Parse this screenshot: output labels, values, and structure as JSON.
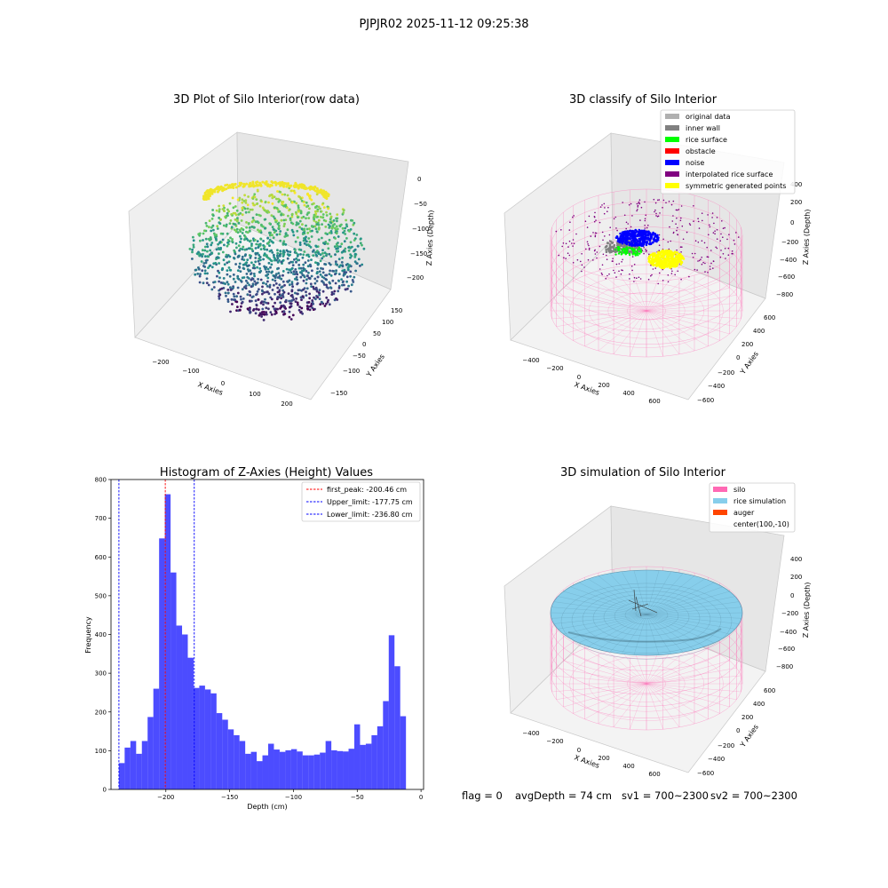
{
  "suptitle": "PJPJR02 2025-11-12 09:25:38",
  "panels": {
    "raw": {
      "title": "3D Plot of Silo Interior(row data)",
      "xlabel": "X Axies",
      "ylabel": "Y Axies",
      "zlabel": "Z Axies (Depth)",
      "xticks": [
        "−200",
        "−100",
        "0",
        "100",
        "200"
      ],
      "yticks": [
        "−150",
        "−100",
        "−50",
        "0",
        "50",
        "100",
        "150"
      ],
      "zticks": [
        "0",
        "−50",
        "−100",
        "−150",
        "−200"
      ]
    },
    "classify": {
      "title": "3D classify of Silo Interior",
      "xlabel": "X Axies",
      "ylabel": "Y Axies",
      "zlabel": "Z Axies (Depth)",
      "xticks": [
        "−400",
        "−200",
        "0",
        "200",
        "400",
        "600"
      ],
      "yticks": [
        "−600",
        "−400",
        "−200",
        "0",
        "200",
        "400",
        "600"
      ],
      "zticks": [
        "400",
        "200",
        "0",
        "−200",
        "−400",
        "−600",
        "−800"
      ],
      "legend": [
        {
          "label": "original data",
          "color": "#b0b0b0"
        },
        {
          "label": "inner wall",
          "color": "#808080"
        },
        {
          "label": "rice surface",
          "color": "#00ff00"
        },
        {
          "label": "obstacle",
          "color": "#ff0000"
        },
        {
          "label": "noise",
          "color": "#0000ff"
        },
        {
          "label": "interpolated rice surface",
          "color": "#800080"
        },
        {
          "label": "symmetric generated points",
          "color": "#ffff00"
        }
      ]
    },
    "simulation": {
      "title": "3D simulation of Silo Interior",
      "xlabel": "X Axies",
      "ylabel": "Y Axies",
      "zlabel": "Z Axies (Depth)",
      "xticks": [
        "−400",
        "−200",
        "0",
        "200",
        "400",
        "600"
      ],
      "yticks": [
        "−600",
        "−400",
        "−200",
        "0",
        "200",
        "400",
        "600"
      ],
      "zticks": [
        "400",
        "200",
        "0",
        "−200",
        "−400",
        "−600",
        "−800"
      ],
      "legend": [
        {
          "label": "silo",
          "color": "#ff69b4"
        },
        {
          "label": "rice simulation",
          "color": "#87ceeb"
        },
        {
          "label": "auger",
          "color": "#ff4500"
        },
        {
          "label": "center(100,-10)",
          "color": ""
        }
      ]
    }
  },
  "status": {
    "flag": "flag = 0",
    "avg_depth": "avgDepth = 74 cm",
    "sv1": "sv1 = 700~2300",
    "sv2": "sv2 = 700~2300"
  },
  "chart_data": [
    {
      "type": "bar",
      "title": "Histogram of Z-Axies (Height) Values",
      "xlabel": "Depth (cm)",
      "ylabel": "Frequency",
      "xlim": [
        -243,
        2
      ],
      "ylim": [
        0,
        800
      ],
      "xticks": [
        -200,
        -150,
        -100,
        -50,
        0
      ],
      "yticks": [
        0,
        100,
        200,
        300,
        400,
        500,
        600,
        700,
        800
      ],
      "bar_color": "#0000ff",
      "bins": {
        "start": -236.8,
        "width": 4.5
      },
      "values": [
        68,
        108,
        125,
        92,
        125,
        187,
        260,
        648,
        762,
        560,
        423,
        400,
        340,
        262,
        268,
        258,
        248,
        197,
        180,
        155,
        140,
        125,
        92,
        97,
        73,
        88,
        118,
        103,
        97,
        101,
        104,
        98,
        88,
        88,
        90,
        95,
        125,
        101,
        99,
        98,
        105,
        168,
        115,
        118,
        140,
        163,
        228,
        398,
        318,
        189
      ],
      "vlines": [
        {
          "label": "first_peak: -200.46 cm",
          "x": -200.46,
          "color": "#ff0000"
        },
        {
          "label": "Upper_limit: -177.75 cm",
          "x": -177.75,
          "color": "#0000ff"
        },
        {
          "label": "Lower_limit: -236.80 cm",
          "x": -236.8,
          "color": "#0000ff"
        }
      ],
      "legend_position": "upper right"
    }
  ]
}
